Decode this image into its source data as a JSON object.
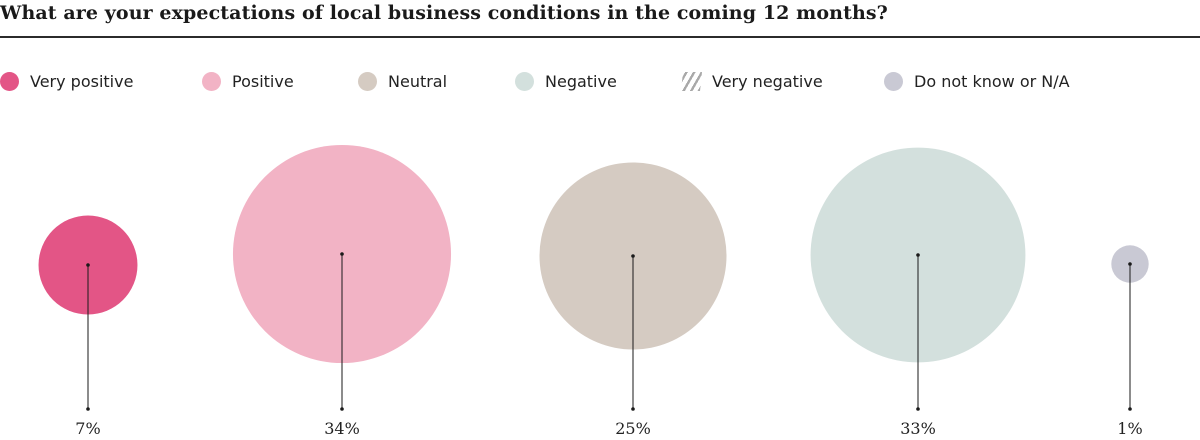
{
  "title": "What are your expectations of local business conditions in the coming 12 months?",
  "colors": {
    "very_positive": "#e35586",
    "positive": "#f2b3c5",
    "neutral": "#d5cbc2",
    "negative": "#d3e0dd",
    "very_negative": "#a9a9a9",
    "dont_know": "#c9c9d4"
  },
  "legend": [
    {
      "label": "Very positive",
      "color": "#e35586",
      "icon": "circle-swatch"
    },
    {
      "label": "Positive",
      "color": "#f2b3c5",
      "icon": "circle-swatch"
    },
    {
      "label": "Neutral",
      "color": "#d5cbc2",
      "icon": "circle-swatch"
    },
    {
      "label": "Negative",
      "color": "#d3e0dd",
      "icon": "circle-swatch"
    },
    {
      "label": "Very negative",
      "color": "#a9a9a9",
      "icon": "hatched-swatch"
    },
    {
      "label": "Do not know or N/A",
      "color": "#c9c9d4",
      "icon": "circle-swatch"
    }
  ],
  "chart_data": {
    "type": "bubble",
    "title": "What are your expectations of local business conditions in the coming 12 months?",
    "unit": "%",
    "series": [
      {
        "name": "Very positive",
        "value": 7,
        "label": "7%",
        "color": "#e35586"
      },
      {
        "name": "Positive",
        "value": 34,
        "label": "34%",
        "color": "#f2b3c5"
      },
      {
        "name": "Neutral",
        "value": 25,
        "label": "25%",
        "color": "#d5cbc2"
      },
      {
        "name": "Negative",
        "value": 33,
        "label": "33%",
        "color": "#d3e0dd"
      },
      {
        "name": "Do not know or N/A",
        "value": 1,
        "label": "1%",
        "color": "#c9c9d4"
      }
    ],
    "legend_position": "top"
  }
}
